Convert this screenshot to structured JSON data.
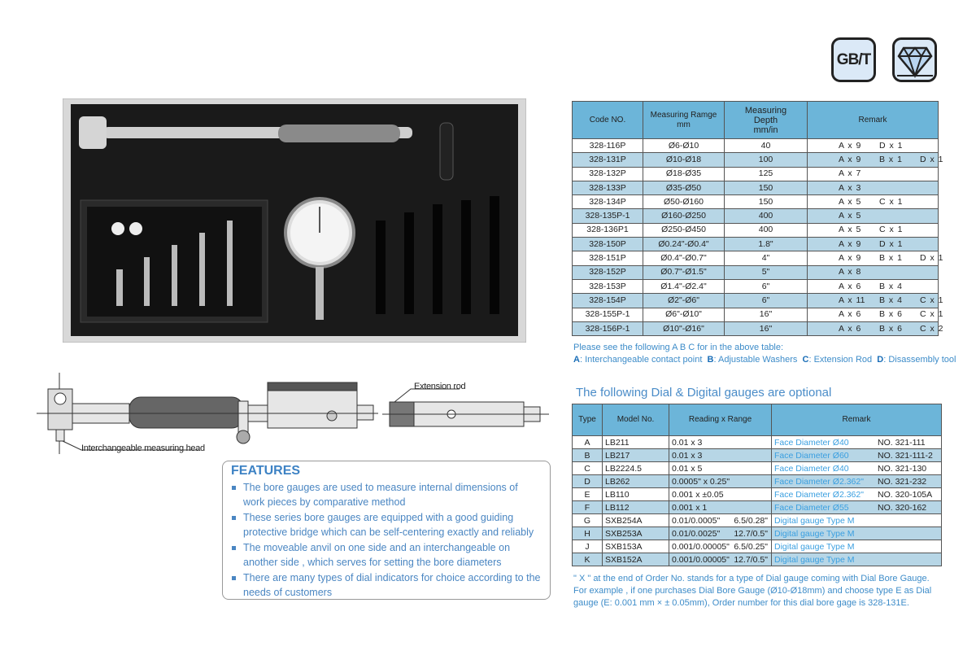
{
  "badges": {
    "standard": "GB/T",
    "quality_icon": "diamond-icon"
  },
  "main_table": {
    "headers": [
      "Code NO.",
      "Measuring Ramge\nmm",
      "Measuring\nDepth\nmm/in",
      "Remark"
    ],
    "rows": [
      {
        "code": "328-116P",
        "range": "Ø6-Ø10",
        "depth": "40",
        "remark": [
          "A x 9",
          "D x 1",
          ""
        ]
      },
      {
        "code": "328-131P",
        "range": "Ø10-Ø18",
        "depth": "100",
        "remark": [
          "A x 9",
          "B x 1",
          "D x 1"
        ]
      },
      {
        "code": "328-132P",
        "range": "Ø18-Ø35",
        "depth": "125",
        "remark": [
          "A x 7",
          "",
          ""
        ]
      },
      {
        "code": "328-133P",
        "range": "Ø35-Ø50",
        "depth": "150",
        "remark": [
          "A x 3",
          "",
          ""
        ]
      },
      {
        "code": "328-134P",
        "range": "Ø50-Ø160",
        "depth": "150",
        "remark": [
          "A x 5",
          "C x 1",
          ""
        ]
      },
      {
        "code": "328-135P-1",
        "range": "Ø160-Ø250",
        "depth": "400",
        "remark": [
          "A x 5",
          "",
          ""
        ]
      },
      {
        "code": "328-136P1",
        "range": "Ø250-Ø450",
        "depth": "400",
        "remark": [
          "A x 5",
          "C x 1",
          ""
        ]
      },
      {
        "code": "328-150P",
        "range": "Ø0.24\"-Ø0.4\"",
        "depth": "1.8\"",
        "remark": [
          "A x 9",
          "D x 1",
          ""
        ]
      },
      {
        "code": "328-151P",
        "range": "Ø0.4\"-Ø0.7\"",
        "depth": "4\"",
        "remark": [
          "A x 9",
          "B x 1",
          "D x 1"
        ]
      },
      {
        "code": "328-152P",
        "range": "Ø0.7\"-Ø1.5\"",
        "depth": "5\"",
        "remark": [
          "A x 8",
          "",
          ""
        ]
      },
      {
        "code": "328-153P",
        "range": "Ø1.4\"-Ø2.4\"",
        "depth": "6\"",
        "remark": [
          "A x 6",
          "B x 4",
          ""
        ]
      },
      {
        "code": "328-154P",
        "range": "Ø2\"-Ø6\"",
        "depth": "6\"",
        "remark": [
          "A x 11",
          "B x 4",
          "C x 1"
        ]
      },
      {
        "code": "328-155P-1",
        "range": "Ø6\"-Ø10\"",
        "depth": "16\"",
        "remark": [
          "A x 6",
          "B x 6",
          "C x 1"
        ]
      },
      {
        "code": "328-156P-1",
        "range": "Ø10\"-Ø16\"",
        "depth": "16\"",
        "remark": [
          "A x 6",
          "B x 6",
          "C x 2"
        ]
      }
    ]
  },
  "legend": {
    "intro": "Please see the following A B C for in the above table:",
    "items": [
      {
        "key": "A",
        "text": ": Interchangeable contact point"
      },
      {
        "key": "B",
        "text": ": Adjustable Washers"
      },
      {
        "key": "C",
        "text": ": Extension Rod"
      },
      {
        "key": "D",
        "text": ": Disassembly tool"
      }
    ]
  },
  "optional_title": "The following Dial & Digital gauges are optional",
  "optional_table": {
    "headers": [
      "Type",
      "Model No.",
      "Reading x Range",
      "Remark"
    ],
    "rows": [
      {
        "type": "A",
        "model": "LB211",
        "reading": "0.01 x 3",
        "range": "",
        "remark": "Face Diameter Ø40",
        "no": "NO. 321-111"
      },
      {
        "type": "B",
        "model": "LB217",
        "reading": "0.01 x 3",
        "range": "",
        "remark": "Face Diameter Ø60",
        "no": "NO. 321-111-2"
      },
      {
        "type": "C",
        "model": "LB2224.5",
        "reading": "0.01 x 5",
        "range": "",
        "remark": "Face Diameter Ø40",
        "no": "NO. 321-130"
      },
      {
        "type": "D",
        "model": "LB262",
        "reading": "0.0005\" x 0.25\"",
        "range": "",
        "remark": "Face Diameter Ø2.362\"",
        "no": "NO. 321-232"
      },
      {
        "type": "E",
        "model": "LB110",
        "reading": "0.001 x ±0.05",
        "range": "",
        "remark": "Face Diameter Ø2.362\"",
        "no": "NO. 320-105A"
      },
      {
        "type": "F",
        "model": "LB112",
        "reading": "0.001 x 1",
        "range": "",
        "remark": "Face Diameter Ø55",
        "no": "NO. 320-162"
      },
      {
        "type": "G",
        "model": "SXB254A",
        "reading": "0.01/0.0005\"",
        "range": "6.5/0.28\"",
        "remark": "Digital gauge Type M",
        "no": ""
      },
      {
        "type": "H",
        "model": "SXB253A",
        "reading": "0.01/0.0025\"",
        "range": "12.7/0.5\"",
        "remark": "Digital gauge Type M",
        "no": ""
      },
      {
        "type": "J",
        "model": "SXB153A",
        "reading": "0.001/0.00005\"",
        "range": "6.5/0.25\"",
        "remark": "Digital gauge Type M",
        "no": ""
      },
      {
        "type": "K",
        "model": "SXB152A",
        "reading": "0.001/0.00005\"",
        "range": "12.7/0.5\"",
        "remark": "Digital gauge Type M",
        "no": ""
      }
    ]
  },
  "note": "\" X \" at the end of Order No. stands for a type of Dial gauge coming with Dial Bore Gauge. For example , if one purchases Dial Bore Gauge (Ø10-Ø18mm) and choose type E as Dial gauge (E: 0.001 mm × ± 0.05mm), Order number for this dial bore gage is 328-131E.",
  "drawing": {
    "label_head": "Interchangeable measuring head",
    "label_rod": "Extension rod"
  },
  "features": {
    "title": "FEATURES",
    "items": [
      "The bore gauges are used to measure internal dimensions of work pieces by comparative method",
      "These series bore gauges are equipped with a good guiding protective bridge which can be self-centering exactly and reliably",
      "The moveable anvil on one side and an interchangeable on another side , which serves for setting the bore diameters",
      "There are many types of dial indicators for choice according to the needs of customers"
    ]
  },
  "colors": {
    "header_blue": "#6cb5d9",
    "row_blue": "#b7d6e6",
    "text_blue": "#3d8cc9"
  }
}
